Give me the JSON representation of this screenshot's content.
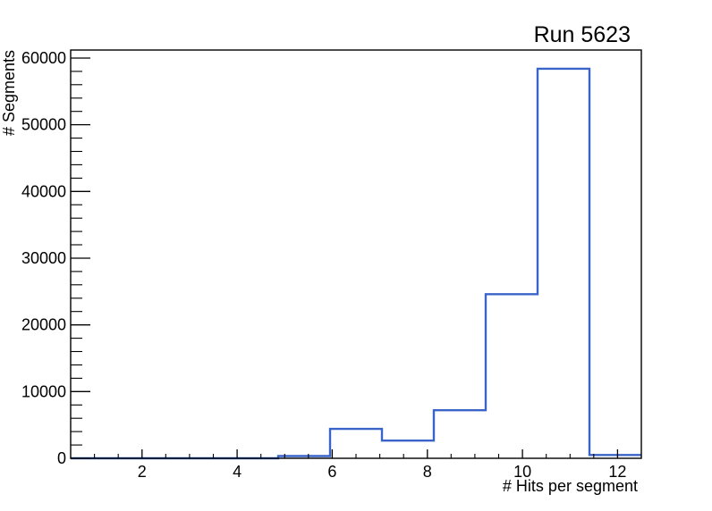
{
  "window": {
    "background": "#ffffff"
  },
  "chart_data": {
    "type": "bar",
    "subtype": "step-histogram",
    "title": "Run 5623",
    "xlabel": "# Hits per segment",
    "ylabel": "# Segments",
    "x_range": [
      0.5,
      12.5
    ],
    "y_range": [
      0,
      61200
    ],
    "n_bins": 11,
    "bin_edges": [
      0.5,
      1.591,
      2.682,
      3.773,
      4.864,
      5.955,
      7.045,
      8.136,
      9.227,
      10.318,
      11.409,
      12.5
    ],
    "values": [
      0,
      0,
      0,
      0,
      330,
      4400,
      2650,
      7200,
      24600,
      58400,
      500
    ],
    "x_major_ticks": [
      2,
      4,
      6,
      8,
      10,
      12
    ],
    "x_minor_tick_step": 0.5,
    "y_major_ticks": [
      0,
      10000,
      20000,
      30000,
      40000,
      50000,
      60000
    ],
    "y_minor_tick_step": 2000,
    "line_color": "#3a64c8",
    "axis_color": "#000000",
    "grid": false,
    "legend": "none"
  }
}
